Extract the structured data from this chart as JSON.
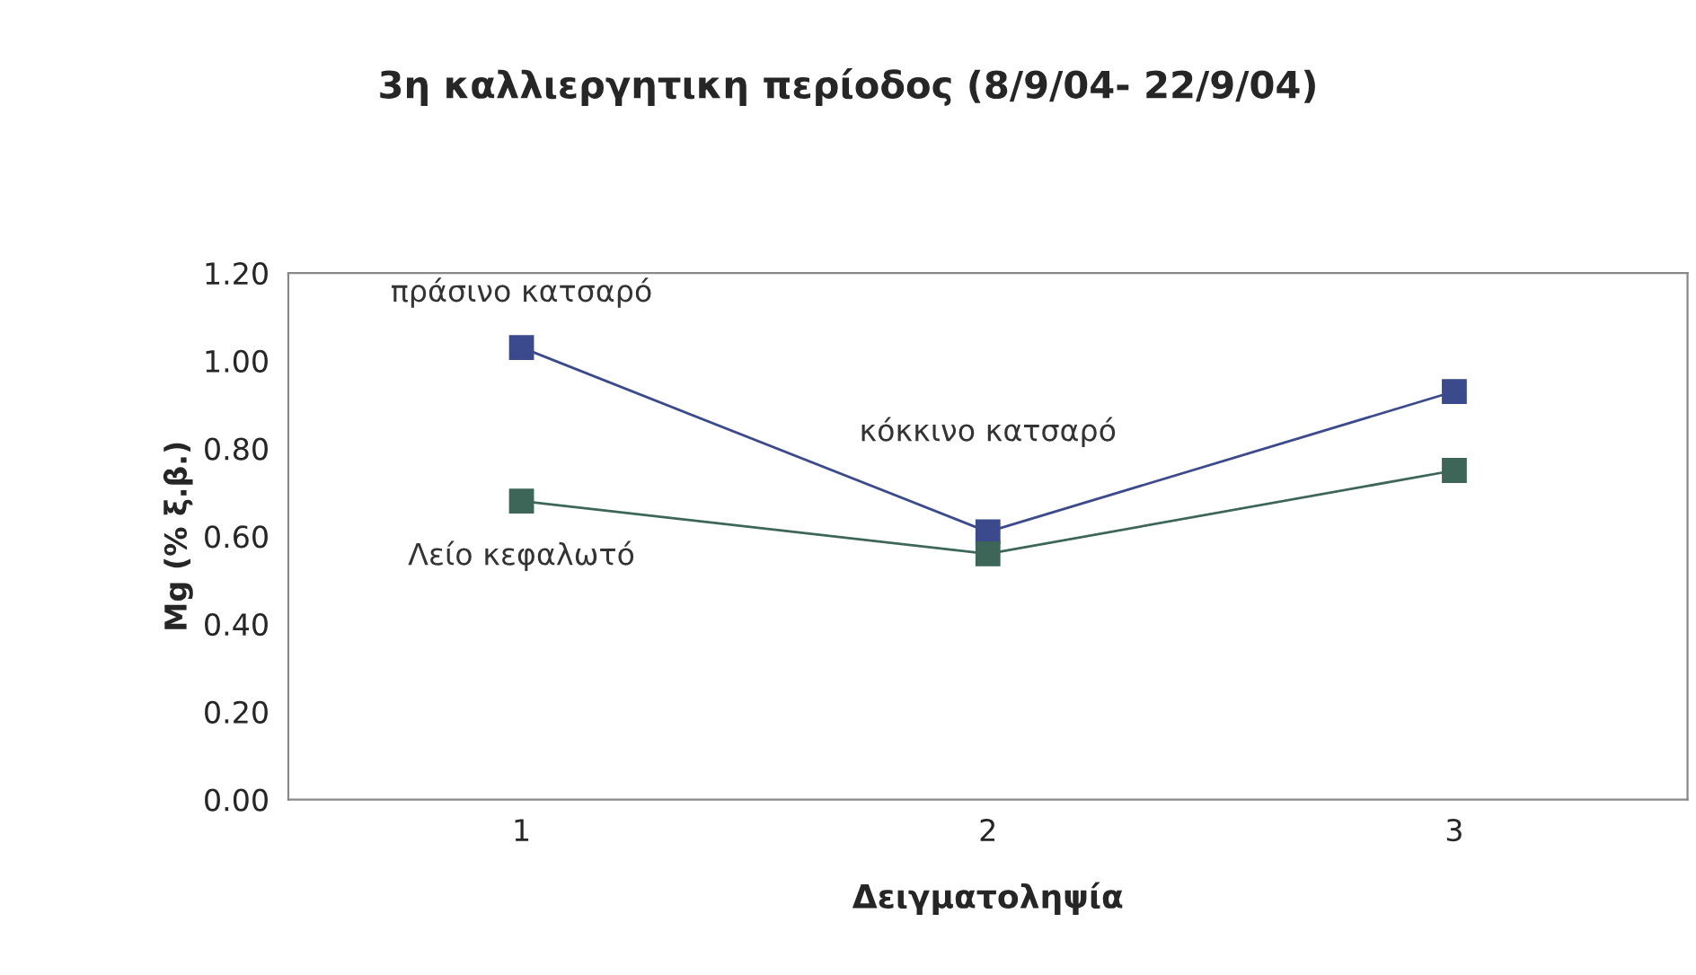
{
  "chart_data": {
    "type": "line",
    "title": "3η καλλιεργητικη περίοδος (8/9/04- 22/9/04)",
    "xlabel": "Δειγματοληψία",
    "ylabel": "Mg (% ξ.β.)",
    "categories": [
      "1",
      "2",
      "3"
    ],
    "series": [
      {
        "name": "πράσινο κατσαρό",
        "color": "#3b4a8c",
        "values": [
          1.03,
          0.61,
          0.93
        ]
      },
      {
        "name": "Λείο κεφαλωτό",
        "color": "#3d6659",
        "values": [
          0.68,
          0.56,
          0.75
        ]
      }
    ],
    "annotations": [
      {
        "text": "κόκκινο κατσαρό",
        "x": "2",
        "y": 0.61
      }
    ],
    "ylim": [
      0,
      1.2
    ],
    "yticks": [
      {
        "value": 0,
        "label": "0.00"
      },
      {
        "value": 0.2,
        "label": "0.20"
      },
      {
        "value": 0.4,
        "label": "0.40"
      },
      {
        "value": 0.6,
        "label": "0.60"
      },
      {
        "value": 0.8,
        "label": "0.80"
      },
      {
        "value": 1.0,
        "label": "1.00"
      },
      {
        "value": 1.2,
        "label": "1.20"
      }
    ],
    "marker": "square",
    "line_style": "solid",
    "grid": false,
    "legend": false
  }
}
